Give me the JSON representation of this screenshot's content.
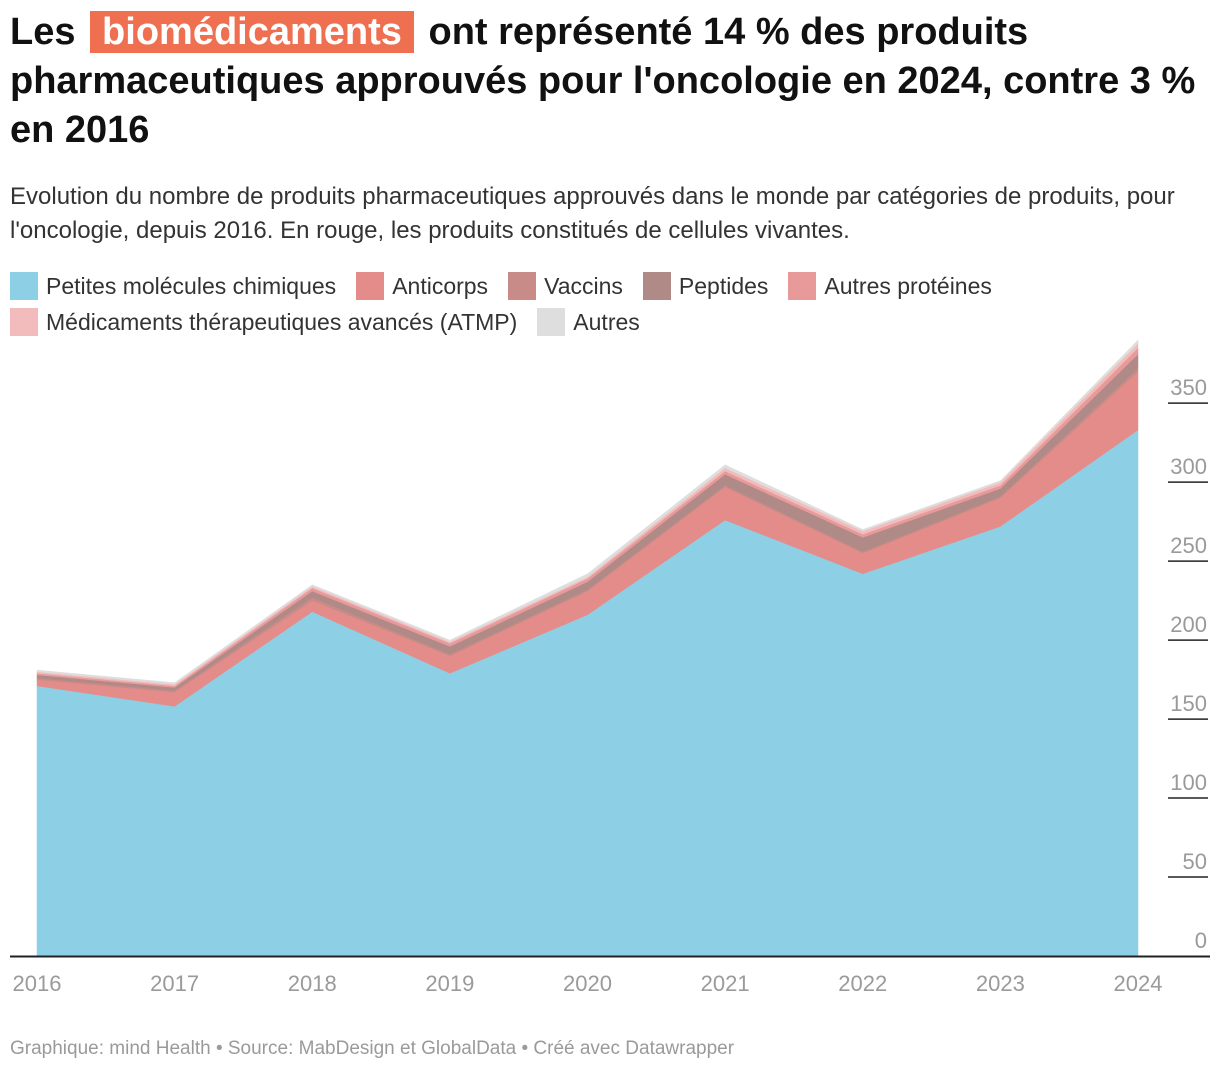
{
  "title": {
    "prefix": "Les",
    "highlight": "biomédicaments",
    "suffix": "ont représenté 14 % des produits pharmaceutiques approuvés pour l'oncologie en 2024, contre 3 % en 2016"
  },
  "subtitle": "Evolution du nombre de produits pharmaceutiques approuvés dans le monde par catégories de produits, pour l'oncologie, depuis 2016. En rouge, les produits constitués de cellules vivantes.",
  "footer": "Graphique: mind Health • Source: MabDesign et GlobalData • Créé avec Datawrapper",
  "colors": {
    "highlight": "#ee7051",
    "axis": "#222222",
    "tick_text": "#9a9a9a"
  },
  "chart_data": {
    "type": "area",
    "stacked": true,
    "x": [
      "2016",
      "2017",
      "2018",
      "2019",
      "2020",
      "2021",
      "2022",
      "2023",
      "2024"
    ],
    "series": [
      {
        "name": "Petites molécules chimiques",
        "color": "#8dd0e6",
        "values": [
          171,
          158,
          218,
          179,
          216,
          276,
          242,
          272,
          333
        ]
      },
      {
        "name": "Anticorps",
        "color": "#e48c8a",
        "values": [
          4,
          9,
          7,
          11,
          15,
          21,
          13,
          18,
          37
        ]
      },
      {
        "name": "Vaccins",
        "color": "#c98b87",
        "values": [
          1,
          1,
          2,
          1,
          1,
          1,
          1,
          1,
          2
        ]
      },
      {
        "name": "Peptides",
        "color": "#b08a87",
        "values": [
          2,
          2,
          4,
          5,
          5,
          7,
          9,
          5,
          9
        ]
      },
      {
        "name": "Autres protéines",
        "color": "#e8999a",
        "values": [
          1,
          1,
          2,
          2,
          2,
          2,
          2,
          2,
          4
        ]
      },
      {
        "name": "Médicaments thérapeutiques avancés (ATMP)",
        "color": "#f2bcbc",
        "values": [
          1,
          1,
          1,
          1,
          1,
          2,
          2,
          2,
          3
        ]
      },
      {
        "name": "Autres",
        "color": "#dedede",
        "values": [
          1,
          1,
          1,
          1,
          2,
          2,
          1,
          1,
          2
        ]
      }
    ],
    "y_ticks": [
      0,
      50,
      100,
      150,
      200,
      250,
      300,
      350
    ],
    "ylim": [
      0,
      390
    ],
    "y_axis_position": "right",
    "grid": false,
    "legend_position": "top-left"
  }
}
